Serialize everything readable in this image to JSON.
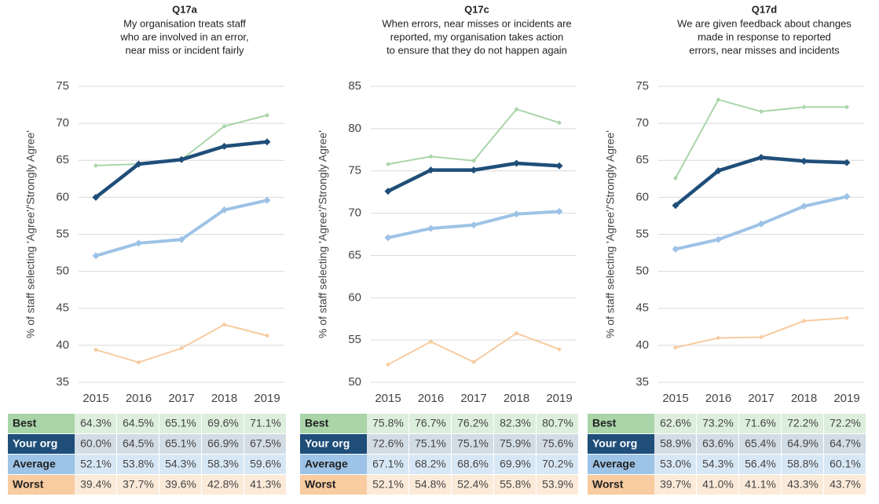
{
  "chart_data": [
    {
      "type": "line",
      "title": "Q17a",
      "subtitle": [
        "My organisation treats staff",
        "who are involved in an error,",
        "near miss or incident fairly"
      ],
      "y_label": "% of staff selecting 'Agree'/'Strongly Agree'",
      "categories": [
        "2015",
        "2016",
        "2017",
        "2018",
        "2019"
      ],
      "ylim": [
        35,
        75
      ],
      "yticks": [
        35,
        40,
        45,
        50,
        55,
        60,
        65,
        70,
        75
      ],
      "grid": true,
      "series": [
        {
          "name": "Best",
          "color": "#a9d5a9",
          "values": [
            64.3,
            64.5,
            65.1,
            69.6,
            71.1
          ],
          "value_labels": [
            "64.3%",
            "64.5%",
            "65.1%",
            "69.6%",
            "71.1%"
          ]
        },
        {
          "name": "Your org",
          "color": "#1f4e79",
          "values": [
            60.0,
            64.5,
            65.1,
            66.9,
            67.5
          ],
          "value_labels": [
            "60.0%",
            "64.5%",
            "65.1%",
            "66.9%",
            "67.5%"
          ]
        },
        {
          "name": "Average",
          "color": "#9dc3e6",
          "values": [
            52.1,
            53.8,
            54.3,
            58.3,
            59.6
          ],
          "value_labels": [
            "52.1%",
            "53.8%",
            "54.3%",
            "58.3%",
            "59.6%"
          ]
        },
        {
          "name": "Worst",
          "color": "#f8cba0",
          "values": [
            39.4,
            37.7,
            39.6,
            42.8,
            41.3
          ],
          "value_labels": [
            "39.4%",
            "37.7%",
            "39.6%",
            "42.8%",
            "41.3%"
          ]
        }
      ]
    },
    {
      "type": "line",
      "title": "Q17c",
      "subtitle": [
        "When errors, near misses or incidents are",
        "reported, my organisation takes action",
        "to ensure that they do not happen again"
      ],
      "y_label": "% of staff selecting 'Agree'/'Strongly Agree'",
      "categories": [
        "2015",
        "2016",
        "2017",
        "2018",
        "2019"
      ],
      "ylim": [
        50,
        85
      ],
      "yticks": [
        50,
        55,
        60,
        65,
        70,
        75,
        80,
        85
      ],
      "grid": true,
      "series": [
        {
          "name": "Best",
          "color": "#a9d5a9",
          "values": [
            75.8,
            76.7,
            76.2,
            82.3,
            80.7
          ],
          "value_labels": [
            "75.8%",
            "76.7%",
            "76.2%",
            "82.3%",
            "80.7%"
          ]
        },
        {
          "name": "Your org",
          "color": "#1f4e79",
          "values": [
            72.6,
            75.1,
            75.1,
            75.9,
            75.6
          ],
          "value_labels": [
            "72.6%",
            "75.1%",
            "75.1%",
            "75.9%",
            "75.6%"
          ]
        },
        {
          "name": "Average",
          "color": "#9dc3e6",
          "values": [
            67.1,
            68.2,
            68.6,
            69.9,
            70.2
          ],
          "value_labels": [
            "67.1%",
            "68.2%",
            "68.6%",
            "69.9%",
            "70.2%"
          ]
        },
        {
          "name": "Worst",
          "color": "#f8cba0",
          "values": [
            52.1,
            54.8,
            52.4,
            55.8,
            53.9
          ],
          "value_labels": [
            "52.1%",
            "54.8%",
            "52.4%",
            "55.8%",
            "53.9%"
          ]
        }
      ]
    },
    {
      "type": "line",
      "title": "Q17d",
      "subtitle": [
        "We are given feedback about changes",
        "made in response to reported",
        "errors, near misses and incidents"
      ],
      "y_label": "% of staff selecting 'Agree'/'Strongly Agree'",
      "categories": [
        "2015",
        "2016",
        "2017",
        "2018",
        "2019"
      ],
      "ylim": [
        35,
        75
      ],
      "yticks": [
        35,
        40,
        45,
        50,
        55,
        60,
        65,
        70,
        75
      ],
      "grid": true,
      "series": [
        {
          "name": "Best",
          "color": "#a9d5a9",
          "values": [
            62.6,
            73.2,
            71.6,
            72.2,
            72.2
          ],
          "value_labels": [
            "62.6%",
            "73.2%",
            "71.6%",
            "72.2%",
            "72.2%"
          ]
        },
        {
          "name": "Your org",
          "color": "#1f4e79",
          "values": [
            58.9,
            63.6,
            65.4,
            64.9,
            64.7
          ],
          "value_labels": [
            "58.9%",
            "63.6%",
            "65.4%",
            "64.9%",
            "64.7%"
          ]
        },
        {
          "name": "Average",
          "color": "#9dc3e6",
          "values": [
            53.0,
            54.3,
            56.4,
            58.8,
            60.1
          ],
          "value_labels": [
            "53.0%",
            "54.3%",
            "56.4%",
            "58.8%",
            "60.1%"
          ]
        },
        {
          "name": "Worst",
          "color": "#f8cba0",
          "values": [
            39.7,
            41.0,
            41.1,
            43.3,
            43.7
          ],
          "value_labels": [
            "39.7%",
            "41.0%",
            "41.1%",
            "43.3%",
            "43.7%"
          ]
        }
      ]
    }
  ]
}
